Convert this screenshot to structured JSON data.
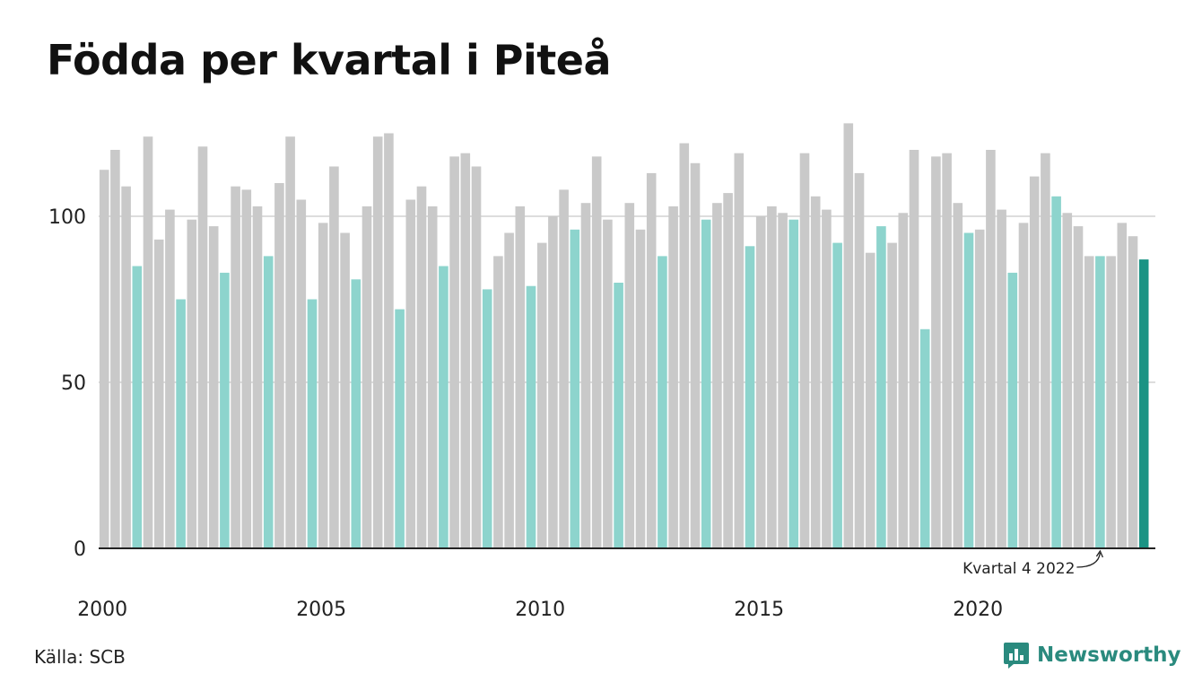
{
  "title": "Födda per kvartal i Piteå",
  "source": "Källa: SCB",
  "brand": {
    "name": "Newsworthy",
    "icon": "newsworthy-logo-icon"
  },
  "colors": {
    "bar_default": "#c9c9c9",
    "bar_q4": "#8dd4cd",
    "bar_latest": "#1a9384",
    "grid": "#dddddd",
    "axis": "#222222",
    "brand": "#2a8a7e"
  },
  "chart_data": {
    "type": "bar",
    "title": "Födda per kvartal i Piteå",
    "xlabel": "",
    "ylabel": "",
    "ylim": [
      0,
      130
    ],
    "yticks": [
      0,
      50,
      100
    ],
    "xtick_labels": [
      "2000",
      "2005",
      "2010",
      "2015",
      "2020"
    ],
    "grid": true,
    "start": "2000 Q1",
    "end": "2023 Q4",
    "values": [
      114,
      120,
      109,
      85,
      124,
      93,
      102,
      75,
      99,
      121,
      97,
      83,
      109,
      108,
      103,
      88,
      110,
      124,
      105,
      75,
      98,
      115,
      95,
      81,
      103,
      124,
      125,
      72,
      105,
      109,
      103,
      85,
      118,
      119,
      115,
      78,
      88,
      95,
      103,
      79,
      92,
      100,
      108,
      96,
      104,
      118,
      99,
      80,
      104,
      96,
      113,
      88,
      103,
      122,
      116,
      99,
      104,
      107,
      119,
      91,
      100,
      103,
      101,
      99,
      119,
      106,
      102,
      92,
      128,
      113,
      89,
      97,
      92,
      101,
      120,
      66,
      118,
      119,
      104,
      95,
      96,
      120,
      102,
      83,
      98,
      112,
      119,
      106,
      101,
      97,
      88,
      88,
      88,
      98,
      94,
      87
    ],
    "highlight": "Q4 bars in light teal; latest bar in dark teal",
    "annotation": {
      "text": "Kvartal 4 2022",
      "target": "2022 Q4"
    }
  }
}
